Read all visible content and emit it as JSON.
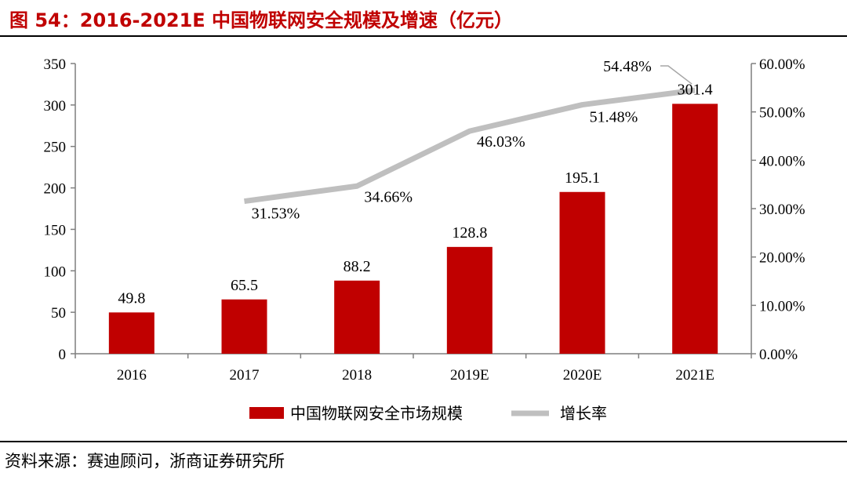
{
  "title": "图 54：2016-2021E 中国物联网安全规模及增速（亿元）",
  "source": "资料来源：赛迪顾问，浙商证券研究所",
  "colors": {
    "bar": "#c00000",
    "line": "#bfbfbf",
    "title": "#c00000"
  },
  "chart_data": {
    "type": "bar",
    "categories": [
      "2016",
      "2017",
      "2018",
      "2019E",
      "2020E",
      "2021E"
    ],
    "series": [
      {
        "name": "中国物联网安全市场规模",
        "type": "bar",
        "axis": "left",
        "values": [
          49.8,
          65.5,
          88.2,
          128.8,
          195.1,
          301.4
        ],
        "labels": [
          "49.8",
          "65.5",
          "88.2",
          "128.8",
          "195.1",
          "301.4"
        ]
      },
      {
        "name": "增长率",
        "type": "line",
        "axis": "right",
        "values": [
          null,
          31.53,
          34.66,
          46.03,
          51.48,
          54.48
        ],
        "labels": [
          "",
          "31.53%",
          "34.66%",
          "46.03%",
          "51.48%",
          "54.48%"
        ]
      }
    ],
    "y_left": {
      "min": 0,
      "max": 350,
      "ticks": [
        "0",
        "50",
        "100",
        "150",
        "200",
        "250",
        "300",
        "350"
      ]
    },
    "y_right": {
      "min": 0,
      "max": 60,
      "ticks": [
        "0.00%",
        "10.00%",
        "20.00%",
        "30.00%",
        "40.00%",
        "50.00%",
        "60.00%"
      ]
    }
  }
}
